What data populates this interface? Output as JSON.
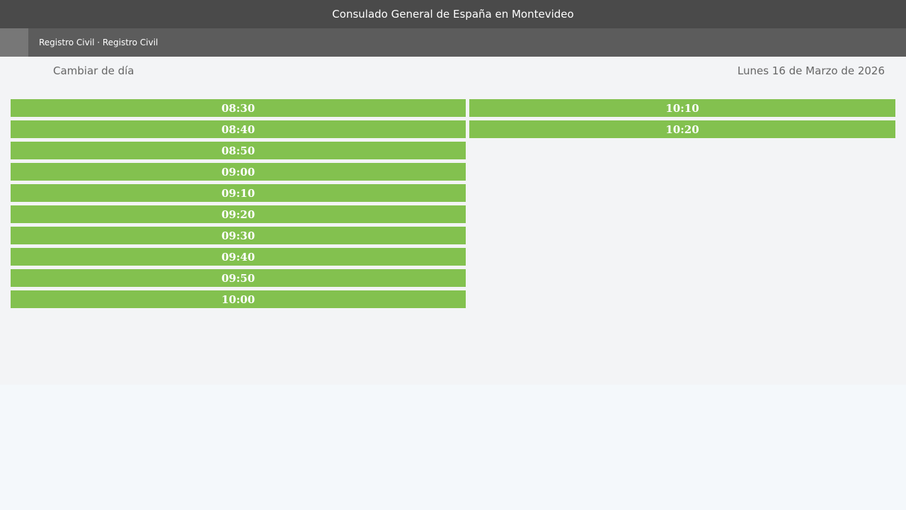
{
  "header": {
    "title": "Consulado General de España en Montevideo"
  },
  "breadcrumb": {
    "text": "Registro Civil · Registro Civil"
  },
  "toolbar": {
    "change_day": "Cambiar de día",
    "date": "Lunes 16 de Marzo de 2026"
  },
  "slots": {
    "left": [
      "08:30",
      "08:40",
      "08:50",
      "09:00",
      "09:10",
      "09:20",
      "09:30",
      "09:40",
      "09:50",
      "10:00"
    ],
    "right": [
      "10:10",
      "10:20"
    ]
  },
  "colors": {
    "slot": "#83c14f",
    "header": "#4a4a4a",
    "subbar": "#5c5c5c"
  }
}
